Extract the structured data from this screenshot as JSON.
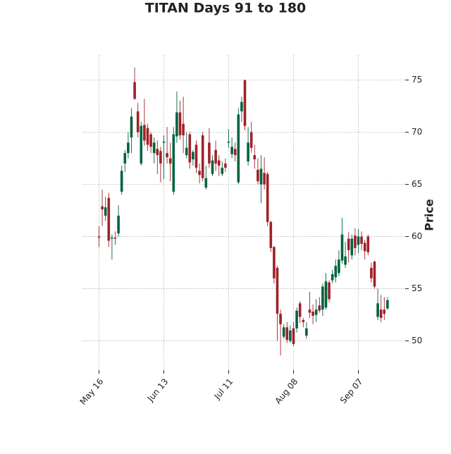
{
  "chart_data": {
    "type": "candlestick",
    "title": "TITAN Days 91 to 180",
    "ylabel": "Price",
    "categories": [
      "May 16",
      null,
      null,
      null,
      null,
      null,
      null,
      null,
      null,
      null,
      null,
      null,
      null,
      null,
      null,
      null,
      null,
      null,
      null,
      null,
      "Jun 13",
      null,
      null,
      null,
      null,
      null,
      null,
      null,
      null,
      null,
      null,
      null,
      null,
      null,
      null,
      null,
      null,
      null,
      null,
      null,
      "Jul 11",
      null,
      null,
      null,
      null,
      null,
      null,
      null,
      null,
      null,
      null,
      null,
      null,
      null,
      null,
      null,
      null,
      null,
      null,
      null,
      "Aug 08",
      null,
      null,
      null,
      null,
      null,
      null,
      null,
      null,
      null,
      null,
      null,
      null,
      null,
      null,
      null,
      null,
      null,
      null,
      null,
      "Sep 07",
      null,
      null,
      null,
      null,
      null,
      null,
      null,
      null,
      null
    ],
    "open": [
      60,
      62.9,
      62,
      63.7,
      59.8,
      59.9,
      60.3,
      64.3,
      67,
      68,
      69.5,
      74.8,
      72,
      67,
      70.7,
      70.4,
      69.8,
      68,
      68.4,
      68.2,
      69,
      68,
      67.5,
      64.3,
      69.6,
      71.9,
      70.8,
      67.8,
      69.8,
      67.4,
      68.8,
      66.3,
      69.7,
      64.7,
      69,
      66,
      68.3,
      67.3,
      66,
      67,
      69,
      67.9,
      68.4,
      65.2,
      72,
      75,
      67.2,
      70,
      67.8,
      66.4,
      65,
      66.1,
      66,
      61.4,
      59,
      57,
      52.6,
      50.4,
      51.3,
      50,
      51.2,
      51.2,
      53.6,
      52,
      50.5,
      53,
      52.8,
      52.5,
      53.4,
      53,
      53.2,
      55.6,
      55.8,
      56.1,
      56.5,
      57.7,
      57.3,
      59.8,
      58.2,
      60.1,
      59.2,
      60,
      59.4,
      60,
      57,
      57.6,
      52.3,
      53,
      53,
      53.1
    ],
    "high": [
      61,
      64.5,
      63.8,
      64.2,
      60.2,
      60.5,
      63,
      66.8,
      68.3,
      70,
      72.3,
      76.2,
      72.8,
      71,
      73.2,
      70.8,
      70,
      69.5,
      69.2,
      68.6,
      69.7,
      70.5,
      69,
      70.5,
      73.9,
      73,
      73.4,
      70,
      70,
      68.3,
      69.2,
      67,
      70,
      66.8,
      70.4,
      67.8,
      69.2,
      67.8,
      67.2,
      67.5,
      70.3,
      69.5,
      69,
      72.3,
      73.4,
      75,
      70.5,
      71,
      68.8,
      67.5,
      67.8,
      67.6,
      66.2,
      61.5,
      59.1,
      57.2,
      53,
      51.6,
      51.8,
      51.5,
      51.8,
      53.2,
      53.8,
      52.2,
      51.8,
      54.7,
      53.5,
      54,
      54.2,
      55.5,
      56.5,
      55.8,
      56.8,
      57.8,
      58.7,
      61.8,
      59.5,
      60.4,
      60.2,
      60.8,
      60.7,
      60.5,
      59.7,
      60.2,
      57.5,
      57.7,
      55,
      54.4,
      54.2,
      54.2
    ],
    "low": [
      59,
      61,
      61.5,
      59,
      57.8,
      59.2,
      60,
      64,
      66.2,
      67.5,
      68,
      73.1,
      69.5,
      66.8,
      68.7,
      68.2,
      68,
      67,
      66,
      65.2,
      65.5,
      67,
      65.3,
      64,
      69,
      69.3,
      68,
      67.5,
      66.5,
      66.8,
      66.1,
      65.1,
      65.3,
      64.5,
      66.6,
      65.8,
      66.3,
      65.8,
      65.8,
      66.2,
      68.5,
      67.5,
      67.2,
      65,
      71,
      70.2,
      66.8,
      68,
      66.5,
      65,
      63.2,
      64.5,
      61,
      58.5,
      55.5,
      50,
      48.6,
      50.2,
      49.8,
      49.8,
      49.5,
      50.8,
      51.7,
      51.3,
      50.2,
      52.2,
      51.6,
      51.8,
      52.7,
      52.4,
      53,
      53.7,
      55.5,
      55.6,
      56.2,
      57.4,
      57,
      57.5,
      57.8,
      58.2,
      58.4,
      58.7,
      57.8,
      58.2,
      55.6,
      55,
      52,
      51.8,
      52,
      53
    ],
    "close": [
      59.9,
      62.6,
      62.8,
      59.6,
      59.9,
      59.8,
      62,
      66.3,
      68,
      69,
      71.5,
      73.2,
      70,
      70.6,
      69.2,
      68.8,
      68.6,
      69,
      67.8,
      67,
      69.1,
      67.6,
      67,
      69.8,
      71.9,
      69.7,
      69.7,
      68.5,
      67.1,
      68.1,
      66.6,
      65.9,
      65.6,
      65.6,
      67,
      67.3,
      67,
      66.8,
      66.6,
      66.6,
      69.1,
      68.6,
      67.8,
      71.7,
      72.9,
      70.6,
      69,
      68.5,
      67.4,
      65.3,
      66.5,
      65,
      61.4,
      58.9,
      56,
      52.6,
      51.6,
      51.3,
      50.1,
      51,
      49.7,
      52.9,
      52.3,
      51.8,
      51.2,
      52.7,
      52.4,
      53,
      52.9,
      55.2,
      55.7,
      54,
      56.4,
      57.2,
      57.8,
      60.2,
      58.1,
      58.7,
      59.8,
      58.9,
      60,
      59.3,
      58.6,
      58.5,
      56,
      55.2,
      53.6,
      52.2,
      52.6,
      53.9
    ],
    "up_color": "#006340",
    "down_color": "#a02128",
    "ylim": [
      47.2,
      77.4
    ],
    "yticks": [
      50,
      55,
      60,
      65,
      70,
      75
    ],
    "grid": true
  }
}
